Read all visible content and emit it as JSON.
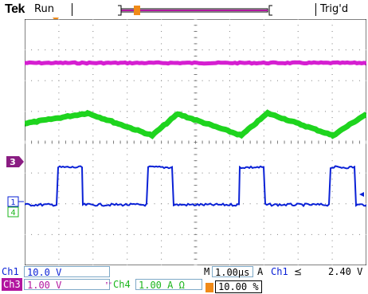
{
  "header": {
    "brand": "Tek",
    "state": "Run",
    "trigger_status": "Trig'd"
  },
  "markers": {
    "trigger_position": "T",
    "ch3": "3",
    "ch1": "1",
    "ch4": "4"
  },
  "readouts": {
    "ch1_label": "Ch1",
    "ch1_scale": "10.0 V",
    "ch3_label": "Ch3",
    "ch3_scale": "1.00 V",
    "bw_symbol": "ᴮᵂ",
    "ch4_label": "Ch4",
    "ch4_scale": "1.00 A Ω",
    "timebase_label": "M",
    "timebase": "1.00µs",
    "trigger_mode": "A",
    "trigger_source": "Ch1",
    "trigger_slope": "⪯",
    "trigger_level": "2.40 V",
    "trigger_position_pct": "10.00 %"
  },
  "colors": {
    "ch1": "#0a21d6",
    "ch3": "#d51fd1",
    "ch4": "#1ed41e",
    "grid": "#7e7e7e",
    "trigger_marker": "#f08a18",
    "ch3_tag": "#8a1d82"
  }
}
